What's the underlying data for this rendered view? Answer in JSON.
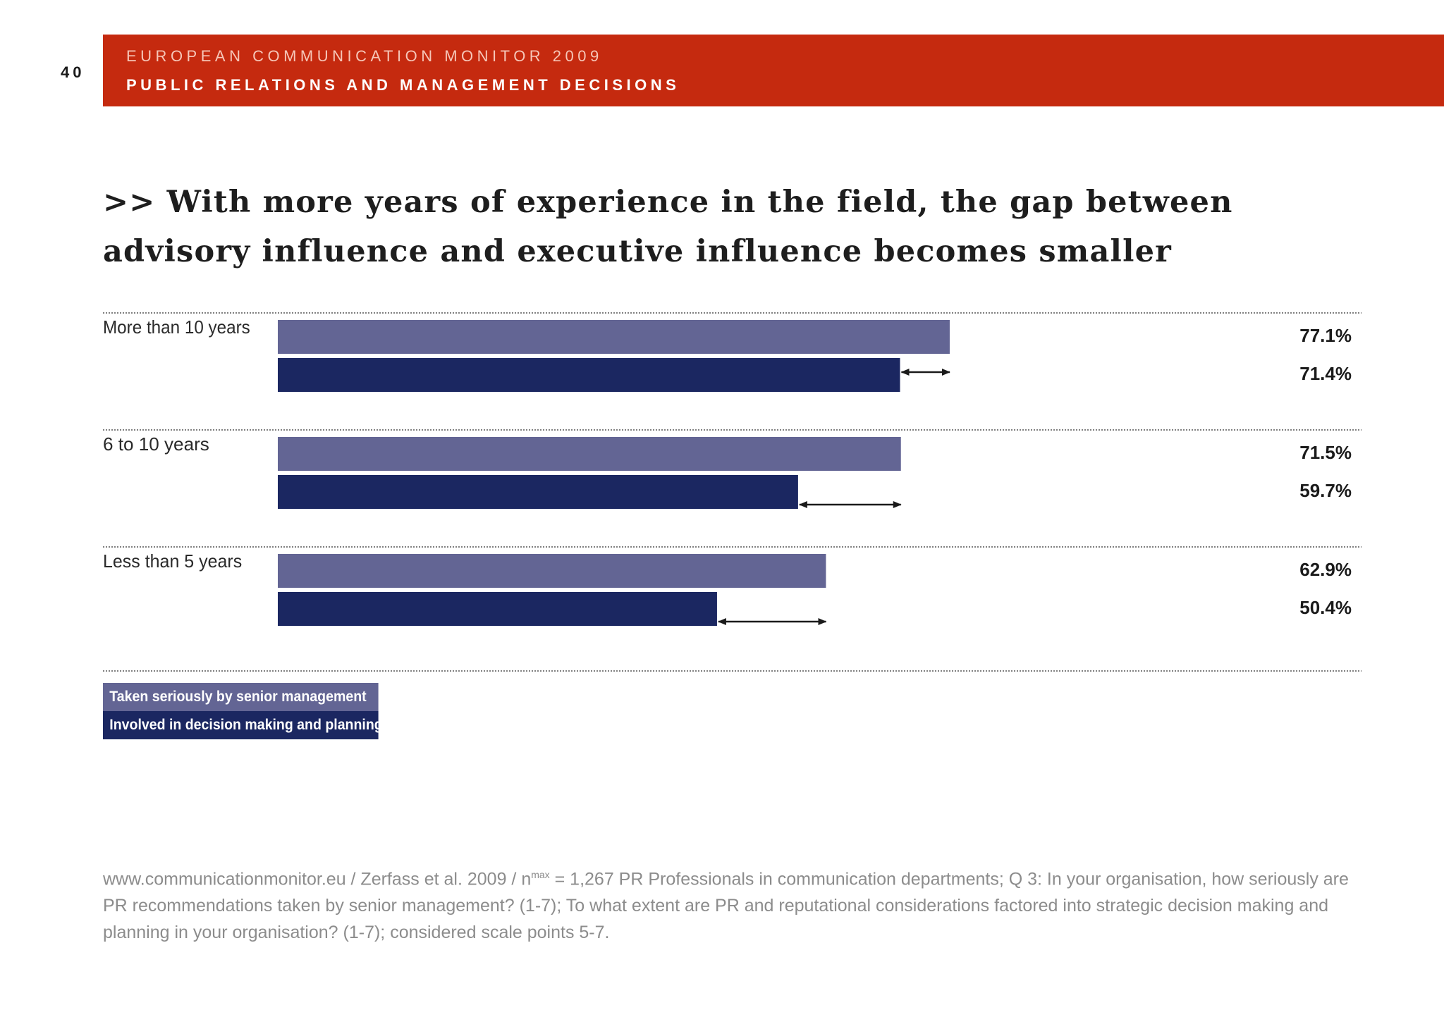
{
  "page": {
    "number": "40",
    "banner_line1": "EUROPEAN COMMUNICATION MONITOR 2009",
    "banner_line2": "PUBLIC RELATIONS AND MANAGEMENT DECISIONS",
    "headline": ">> With more years of experience in the field, the gap between advisory influence and executive influence becomes smaller",
    "footnote_pre": "www.communicationmonitor.eu / Zerfass et al. 2009 / n",
    "footnote_sup": "max",
    "footnote_post": " = 1,267 PR Professionals in communication departments; Q 3: In your organisation, how seriously are PR recommendations taken by senior management? (1-7); To what extent are PR and reputational considerations factored into strategic decision making and planning in your organisation? (1-7); considered scale points 5-7."
  },
  "colors": {
    "banner": "#c52a0f",
    "series_advisory": "#636594",
    "series_executive": "#1b2761",
    "arrow": "#1a1a1a"
  },
  "chart_data": {
    "type": "bar",
    "orientation": "horizontal",
    "categories": [
      "More than 10 years",
      "6 to 10 years",
      "Less than 5 years"
    ],
    "series": [
      {
        "name": "Taken seriously by senior management",
        "values": [
          77.1,
          71.5,
          62.9
        ],
        "labels": [
          "77.1%",
          "71.5%",
          "62.9%"
        ]
      },
      {
        "name": "Involved in decision making and planning",
        "values": [
          71.4,
          59.7,
          50.4
        ],
        "labels": [
          "71.4%",
          "59.7%",
          "50.4%"
        ]
      }
    ],
    "xlim": [
      0,
      100
    ],
    "gap_arrows": true,
    "legend": "bottom-left",
    "grid": false
  }
}
